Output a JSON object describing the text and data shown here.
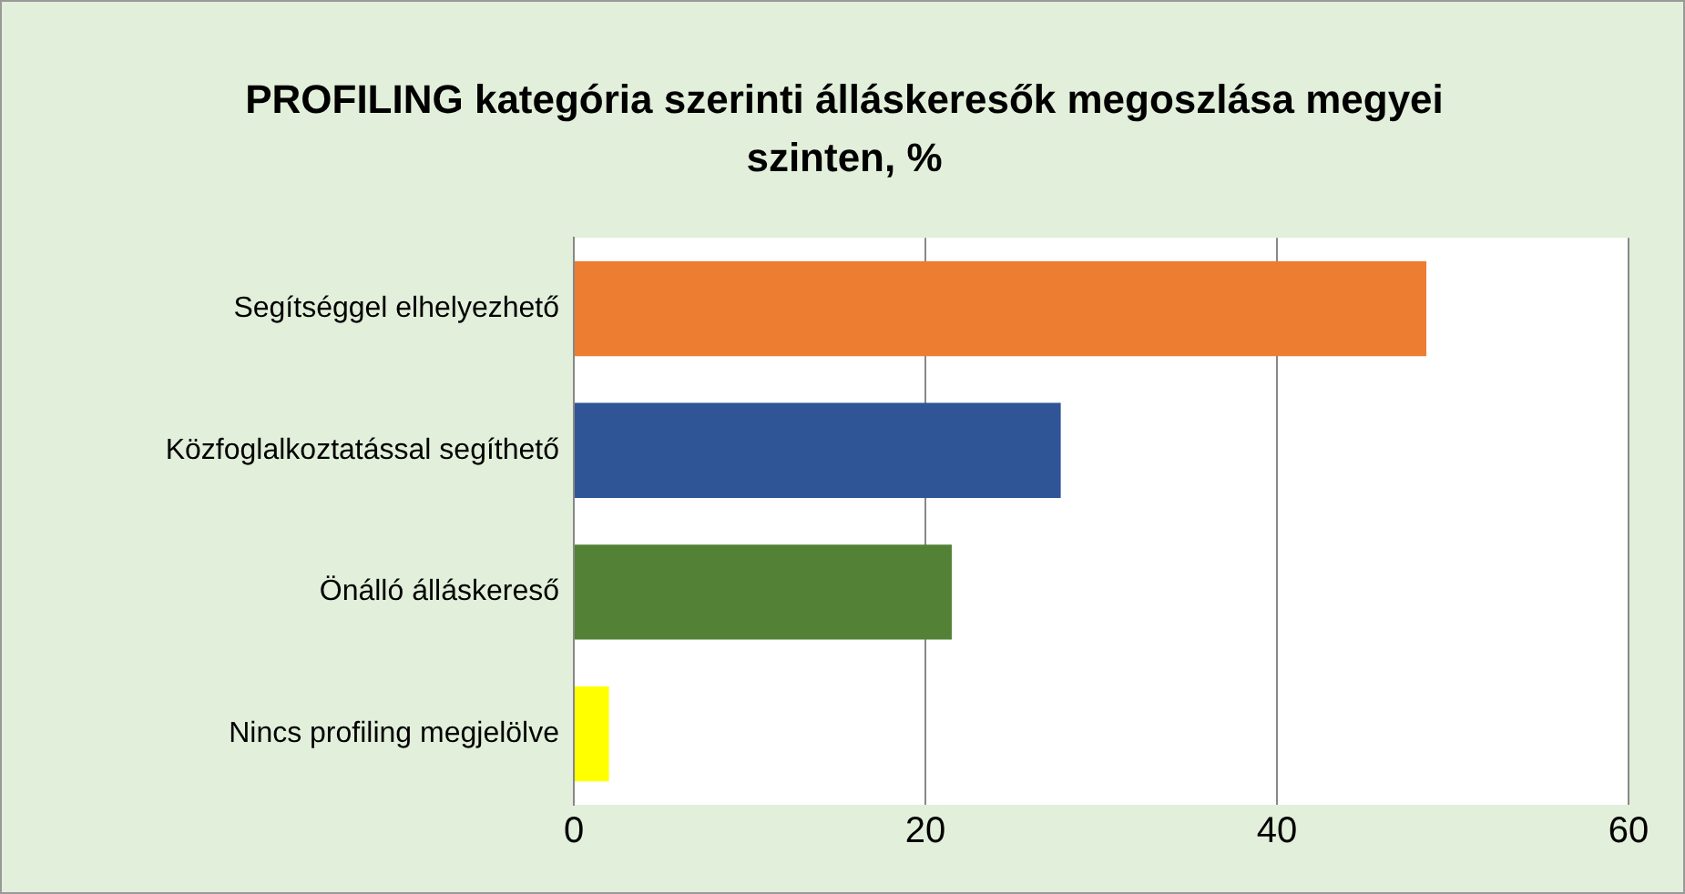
{
  "chart_data": {
    "type": "bar",
    "orientation": "horizontal",
    "title": "PROFILING kategória szerinti álláskeresők megoszlása megyei szinten, %",
    "categories": [
      "Segítséggel elhelyezhető",
      "Közfoglalkoztatással segíthető",
      "Önálló álláskereső",
      "Nincs profiling megjelölve"
    ],
    "values": [
      48.5,
      27.7,
      21.5,
      2.0
    ],
    "colors": [
      "#ed7d31",
      "#2f5597",
      "#538135",
      "#ffff00"
    ],
    "xlim": [
      0,
      60
    ],
    "xticks": [
      0,
      20,
      40,
      60
    ],
    "grid": "x",
    "legend": false
  }
}
